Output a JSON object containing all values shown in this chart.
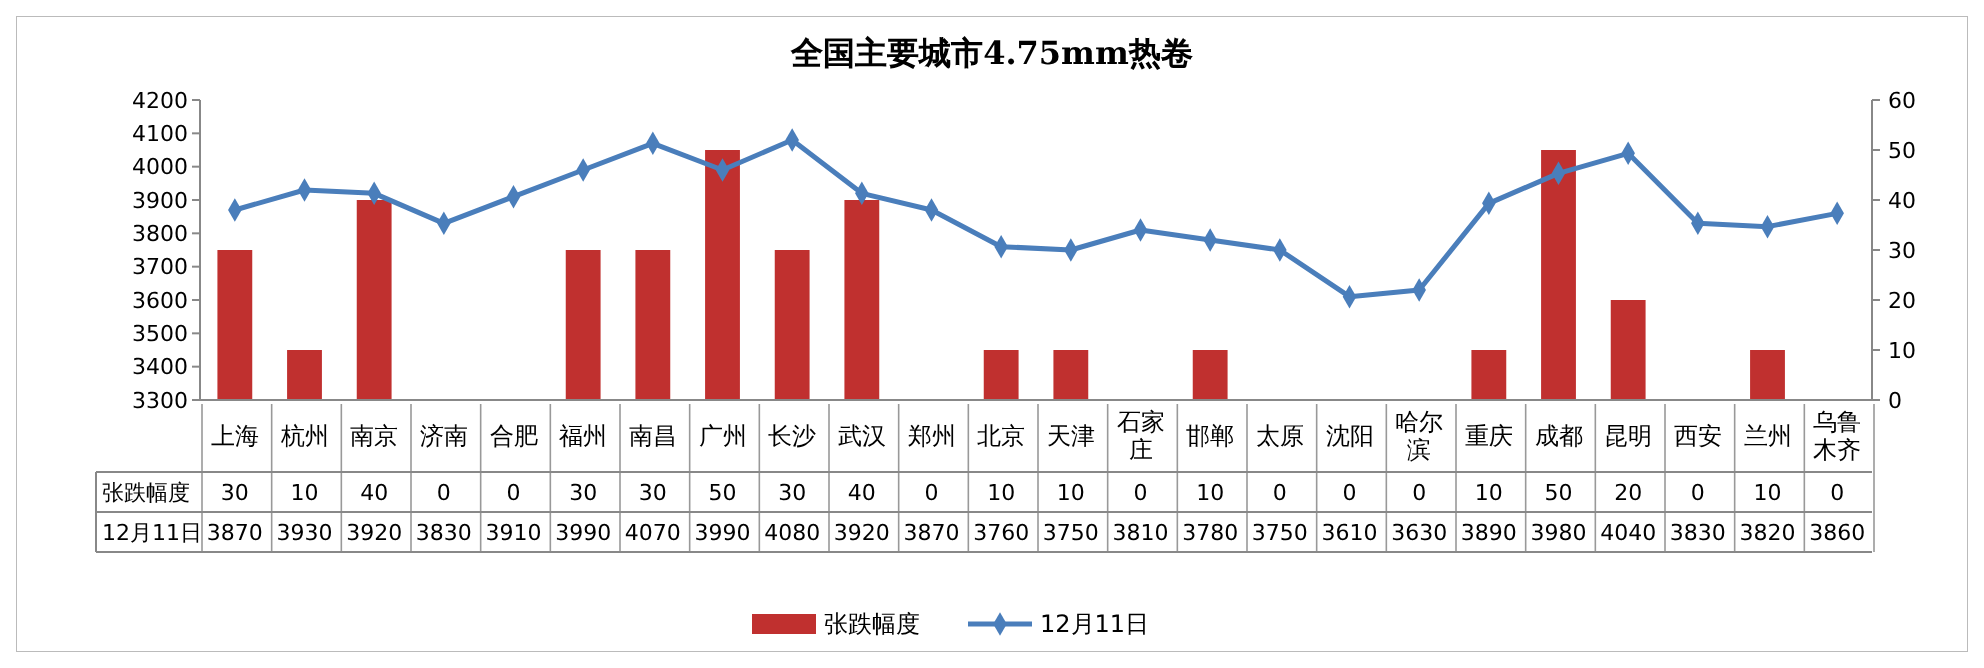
{
  "chart_data": {
    "type": "bar",
    "title": "全国主要城市4.75mm热卷",
    "categories": [
      "上海",
      "杭州",
      "南京",
      "济南",
      "合肥",
      "福州",
      "南昌",
      "广州",
      "长沙",
      "武汉",
      "郑州",
      "北京",
      "天津",
      "石家庄",
      "邯郸",
      "太原",
      "沈阳",
      "哈尔滨",
      "重庆",
      "成都",
      "昆明",
      "西安",
      "兰州",
      "乌鲁木齐"
    ],
    "series": [
      {
        "name": "张跌幅度",
        "axis": "y2",
        "color": "#c0302f",
        "values": [
          30,
          10,
          40,
          0,
          0,
          30,
          30,
          50,
          30,
          40,
          0,
          10,
          10,
          0,
          10,
          0,
          0,
          0,
          10,
          50,
          20,
          0,
          10,
          0
        ]
      },
      {
        "name": "12月11日",
        "type": "line",
        "color": "#4a7ebb",
        "marker": "diamond",
        "values": [
          3870,
          3930,
          3920,
          3830,
          3910,
          3990,
          4070,
          3990,
          4080,
          3920,
          3870,
          3760,
          3750,
          3810,
          3780,
          3750,
          3610,
          3630,
          3890,
          3980,
          4040,
          3830,
          3820,
          3860
        ]
      }
    ],
    "ylim": [
      3300,
      4200
    ],
    "yticks": [
      3300,
      3400,
      3500,
      3600,
      3700,
      3800,
      3900,
      4000,
      4100,
      4200
    ],
    "y2lim": [
      0,
      60
    ],
    "y2ticks": [
      0,
      10,
      20,
      30,
      40,
      50,
      60
    ],
    "data_labels": true,
    "legend": "bottom"
  }
}
